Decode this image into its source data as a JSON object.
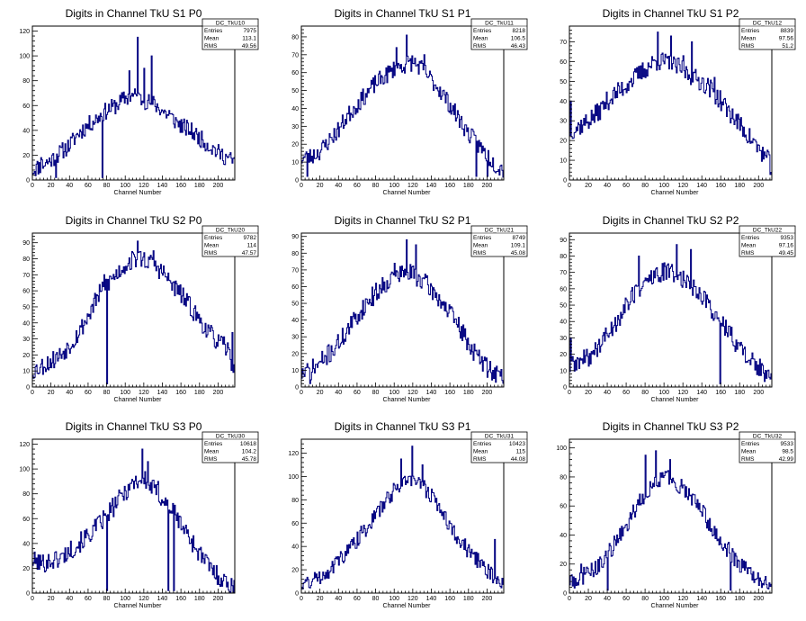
{
  "chart_data": [
    {
      "type": "histogram",
      "id": "DC_TkU10",
      "title": "Digits in Channel TkU S1 P0",
      "xlabel": "Channel Number",
      "xlim": [
        0,
        218
      ],
      "ylim": [
        0,
        124
      ],
      "xticks": [
        0,
        20,
        40,
        60,
        80,
        100,
        120,
        140,
        160,
        180,
        200
      ],
      "yticks": [
        0,
        20,
        40,
        60,
        80,
        100,
        120
      ],
      "stats": {
        "name": "DC_TkU10",
        "entries": "7975",
        "mean": "113.1",
        "rms": "49.56"
      },
      "anchors": [
        [
          0,
          8
        ],
        [
          10,
          12
        ],
        [
          20,
          16
        ],
        [
          30,
          22
        ],
        [
          40,
          28
        ],
        [
          50,
          38
        ],
        [
          60,
          44
        ],
        [
          70,
          50
        ],
        [
          80,
          56
        ],
        [
          90,
          60
        ],
        [
          100,
          66
        ],
        [
          110,
          68
        ],
        [
          120,
          64
        ],
        [
          130,
          62
        ],
        [
          140,
          56
        ],
        [
          150,
          50
        ],
        [
          160,
          44
        ],
        [
          170,
          40
        ],
        [
          180,
          34
        ],
        [
          190,
          28
        ],
        [
          200,
          22
        ],
        [
          210,
          18
        ],
        [
          218,
          14
        ]
      ],
      "spikes": [
        [
          113,
          115
        ],
        [
          128,
          100
        ],
        [
          104,
          88
        ],
        [
          120,
          90
        ],
        [
          147,
          56
        ],
        [
          164,
          40
        ],
        [
          9,
          18
        ],
        [
          196,
          26
        ],
        [
          25,
          2
        ],
        [
          75,
          2
        ]
      ],
      "noise": 7,
      "seed": 11
    },
    {
      "type": "histogram",
      "id": "DC_TkU11",
      "title": "Digits in Channel TkU S1 P1",
      "xlabel": "Channel Number",
      "xlim": [
        0,
        218
      ],
      "ylim": [
        0,
        86
      ],
      "xticks": [
        0,
        20,
        40,
        60,
        80,
        100,
        120,
        140,
        160,
        180,
        200
      ],
      "yticks": [
        0,
        10,
        20,
        30,
        40,
        50,
        60,
        70,
        80
      ],
      "stats": {
        "name": "DC_TkU11",
        "entries": "8218",
        "mean": "106.5",
        "rms": "46.43"
      },
      "anchors": [
        [
          0,
          12
        ],
        [
          10,
          13
        ],
        [
          20,
          16
        ],
        [
          30,
          22
        ],
        [
          40,
          28
        ],
        [
          50,
          36
        ],
        [
          60,
          42
        ],
        [
          70,
          48
        ],
        [
          80,
          54
        ],
        [
          90,
          58
        ],
        [
          100,
          62
        ],
        [
          110,
          64
        ],
        [
          120,
          66
        ],
        [
          130,
          62
        ],
        [
          140,
          56
        ],
        [
          150,
          50
        ],
        [
          160,
          42
        ],
        [
          170,
          34
        ],
        [
          180,
          26
        ],
        [
          190,
          20
        ],
        [
          200,
          14
        ],
        [
          210,
          8
        ],
        [
          218,
          6
        ]
      ],
      "spikes": [
        [
          113,
          81
        ],
        [
          102,
          74
        ],
        [
          132,
          70
        ],
        [
          188,
          2
        ],
        [
          200,
          2
        ],
        [
          6,
          2
        ]
      ],
      "noise": 5,
      "seed": 23
    },
    {
      "type": "histogram",
      "id": "DC_TkU12",
      "title": "Digits in Channel TkU S1 P2",
      "xlabel": "Channel Number",
      "xlim": [
        0,
        214
      ],
      "ylim": [
        0,
        78
      ],
      "xticks": [
        0,
        20,
        40,
        60,
        80,
        100,
        120,
        140,
        160,
        180,
        200
      ],
      "yticks": [
        0,
        10,
        20,
        30,
        40,
        50,
        60,
        70
      ],
      "stats": {
        "name": "DC_TkU12",
        "entries": "8839",
        "mean": "97.56",
        "rms": "51.2"
      },
      "anchors": [
        [
          0,
          25
        ],
        [
          10,
          27
        ],
        [
          20,
          30
        ],
        [
          30,
          34
        ],
        [
          40,
          40
        ],
        [
          50,
          44
        ],
        [
          60,
          48
        ],
        [
          70,
          52
        ],
        [
          80,
          56
        ],
        [
          90,
          60
        ],
        [
          100,
          60
        ],
        [
          110,
          58
        ],
        [
          120,
          56
        ],
        [
          130,
          52
        ],
        [
          140,
          50
        ],
        [
          150,
          46
        ],
        [
          160,
          40
        ],
        [
          170,
          34
        ],
        [
          180,
          28
        ],
        [
          190,
          22
        ],
        [
          200,
          16
        ],
        [
          210,
          10
        ],
        [
          214,
          6
        ]
      ],
      "spikes": [
        [
          1,
          40
        ],
        [
          93,
          75
        ],
        [
          107,
          73
        ],
        [
          129,
          70
        ],
        [
          120,
          63
        ],
        [
          153,
          52
        ],
        [
          63,
          50
        ]
      ],
      "noise": 5,
      "seed": 37
    },
    {
      "type": "histogram",
      "id": "DC_TkU20",
      "title": "Digits in Channel TkU S2 P0",
      "xlabel": "Channel Number",
      "xlim": [
        0,
        218
      ],
      "ylim": [
        0,
        96
      ],
      "xticks": [
        0,
        20,
        40,
        60,
        80,
        100,
        120,
        140,
        160,
        180,
        200
      ],
      "yticks": [
        0,
        10,
        20,
        30,
        40,
        50,
        60,
        70,
        80,
        90
      ],
      "stats": {
        "name": "DC_TkU20",
        "entries": "9782",
        "mean": "114",
        "rms": "47.57"
      },
      "anchors": [
        [
          0,
          10
        ],
        [
          10,
          13
        ],
        [
          20,
          16
        ],
        [
          30,
          20
        ],
        [
          40,
          26
        ],
        [
          50,
          34
        ],
        [
          60,
          44
        ],
        [
          70,
          56
        ],
        [
          80,
          64
        ],
        [
          90,
          70
        ],
        [
          100,
          76
        ],
        [
          110,
          80
        ],
        [
          120,
          80
        ],
        [
          130,
          76
        ],
        [
          140,
          72
        ],
        [
          150,
          64
        ],
        [
          160,
          58
        ],
        [
          170,
          50
        ],
        [
          180,
          42
        ],
        [
          190,
          34
        ],
        [
          200,
          28
        ],
        [
          210,
          24
        ],
        [
          218,
          10
        ]
      ],
      "spikes": [
        [
          113,
          91
        ],
        [
          80,
          2
        ],
        [
          130,
          85
        ],
        [
          215,
          34
        ],
        [
          77,
          70
        ]
      ],
      "noise": 6,
      "seed": 53
    },
    {
      "type": "histogram",
      "id": "DC_TkU21",
      "title": "Digits in Channel TkU S2 P1",
      "xlabel": "Channel Number",
      "xlim": [
        0,
        218
      ],
      "ylim": [
        0,
        92
      ],
      "xticks": [
        0,
        20,
        40,
        60,
        80,
        100,
        120,
        140,
        160,
        180,
        200
      ],
      "yticks": [
        0,
        10,
        20,
        30,
        40,
        50,
        60,
        70,
        80,
        90
      ],
      "stats": {
        "name": "DC_TkU21",
        "entries": "8749",
        "mean": "109.1",
        "rms": "45.08"
      },
      "anchors": [
        [
          0,
          8
        ],
        [
          10,
          10
        ],
        [
          20,
          14
        ],
        [
          30,
          20
        ],
        [
          40,
          26
        ],
        [
          50,
          34
        ],
        [
          60,
          42
        ],
        [
          70,
          50
        ],
        [
          80,
          56
        ],
        [
          90,
          62
        ],
        [
          100,
          66
        ],
        [
          110,
          68
        ],
        [
          120,
          68
        ],
        [
          130,
          64
        ],
        [
          140,
          58
        ],
        [
          150,
          52
        ],
        [
          160,
          44
        ],
        [
          170,
          36
        ],
        [
          180,
          26
        ],
        [
          190,
          18
        ],
        [
          200,
          12
        ],
        [
          210,
          8
        ],
        [
          218,
          6
        ]
      ],
      "spikes": [
        [
          113,
          88
        ],
        [
          123,
          85
        ],
        [
          100,
          74
        ],
        [
          9,
          2
        ],
        [
          6,
          14
        ]
      ],
      "noise": 6,
      "seed": 71
    },
    {
      "type": "histogram",
      "id": "DC_TkU22",
      "title": "Digits in Channel TkU S2 P2",
      "xlabel": "Channel Number",
      "xlim": [
        0,
        214
      ],
      "ylim": [
        0,
        94
      ],
      "xticks": [
        0,
        20,
        40,
        60,
        80,
        100,
        120,
        140,
        160,
        180,
        200
      ],
      "yticks": [
        0,
        10,
        20,
        30,
        40,
        50,
        60,
        70,
        80,
        90
      ],
      "stats": {
        "name": "DC_TkU22",
        "entries": "9353",
        "mean": "97.16",
        "rms": "49.45"
      },
      "anchors": [
        [
          0,
          12
        ],
        [
          10,
          15
        ],
        [
          20,
          18
        ],
        [
          30,
          24
        ],
        [
          40,
          32
        ],
        [
          50,
          40
        ],
        [
          60,
          50
        ],
        [
          70,
          58
        ],
        [
          80,
          64
        ],
        [
          90,
          68
        ],
        [
          100,
          70
        ],
        [
          110,
          70
        ],
        [
          120,
          66
        ],
        [
          130,
          62
        ],
        [
          140,
          56
        ],
        [
          150,
          48
        ],
        [
          160,
          40
        ],
        [
          170,
          32
        ],
        [
          180,
          24
        ],
        [
          190,
          18
        ],
        [
          200,
          12
        ],
        [
          210,
          6
        ],
        [
          214,
          3
        ]
      ],
      "spikes": [
        [
          113,
          87
        ],
        [
          128,
          84
        ],
        [
          159,
          2
        ],
        [
          1,
          30
        ],
        [
          73,
          80
        ]
      ],
      "noise": 6,
      "seed": 89
    },
    {
      "type": "histogram",
      "id": "DC_TkU30",
      "title": "Digits in Channel TkU S3 P0",
      "xlabel": "Channel Number",
      "xlim": [
        0,
        218
      ],
      "ylim": [
        0,
        124
      ],
      "xticks": [
        0,
        20,
        40,
        60,
        80,
        100,
        120,
        140,
        160,
        180,
        200
      ],
      "yticks": [
        0,
        20,
        40,
        60,
        80,
        100,
        120
      ],
      "stats": {
        "name": "DC_TkU30",
        "entries": "10618",
        "mean": "104.2",
        "rms": "45.78"
      },
      "anchors": [
        [
          0,
          26
        ],
        [
          10,
          24
        ],
        [
          20,
          26
        ],
        [
          30,
          28
        ],
        [
          40,
          34
        ],
        [
          50,
          40
        ],
        [
          60,
          46
        ],
        [
          70,
          54
        ],
        [
          80,
          62
        ],
        [
          90,
          72
        ],
        [
          100,
          82
        ],
        [
          110,
          90
        ],
        [
          120,
          92
        ],
        [
          130,
          84
        ],
        [
          140,
          76
        ],
        [
          150,
          68
        ],
        [
          160,
          56
        ],
        [
          170,
          44
        ],
        [
          180,
          32
        ],
        [
          190,
          22
        ],
        [
          200,
          14
        ],
        [
          210,
          8
        ],
        [
          218,
          4
        ]
      ],
      "spikes": [
        [
          118,
          116
        ],
        [
          80,
          2
        ],
        [
          146,
          2
        ],
        [
          152,
          2
        ],
        [
          124,
          106
        ],
        [
          135,
          90
        ]
      ],
      "noise": 8,
      "seed": 101
    },
    {
      "type": "histogram",
      "id": "DC_TkU31",
      "title": "Digits in Channel TkU S3 P1",
      "xlabel": "Channel Number",
      "xlim": [
        0,
        218
      ],
      "ylim": [
        0,
        132
      ],
      "xticks": [
        0,
        20,
        40,
        60,
        80,
        100,
        120,
        140,
        160,
        180,
        200
      ],
      "yticks": [
        0,
        20,
        40,
        60,
        80,
        100,
        120
      ],
      "stats": {
        "name": "DC_TkU31",
        "entries": "10423",
        "mean": "115",
        "rms": "44.08"
      },
      "anchors": [
        [
          0,
          8
        ],
        [
          10,
          10
        ],
        [
          20,
          14
        ],
        [
          30,
          20
        ],
        [
          40,
          28
        ],
        [
          50,
          36
        ],
        [
          60,
          46
        ],
        [
          70,
          56
        ],
        [
          80,
          66
        ],
        [
          90,
          78
        ],
        [
          100,
          88
        ],
        [
          110,
          96
        ],
        [
          120,
          98
        ],
        [
          130,
          92
        ],
        [
          140,
          84
        ],
        [
          150,
          72
        ],
        [
          160,
          58
        ],
        [
          170,
          46
        ],
        [
          180,
          36
        ],
        [
          190,
          28
        ],
        [
          200,
          20
        ],
        [
          210,
          12
        ],
        [
          218,
          6
        ]
      ],
      "spikes": [
        [
          119,
          126
        ],
        [
          107,
          115
        ],
        [
          130,
          110
        ],
        [
          208,
          46
        ]
      ],
      "noise": 7,
      "seed": 131
    },
    {
      "type": "histogram",
      "id": "DC_TkU32",
      "title": "Digits in Channel TkU S3 P2",
      "xlabel": "Channel Number",
      "xlim": [
        0,
        214
      ],
      "ylim": [
        0,
        106
      ],
      "xticks": [
        0,
        20,
        40,
        60,
        80,
        100,
        120,
        140,
        160,
        180,
        200
      ],
      "yticks": [
        0,
        20,
        40,
        60,
        80,
        100
      ],
      "stats": {
        "name": "DC_TkU32",
        "entries": "9533",
        "mean": "98.5",
        "rms": "42.99"
      },
      "anchors": [
        [
          0,
          8
        ],
        [
          10,
          10
        ],
        [
          20,
          14
        ],
        [
          30,
          18
        ],
        [
          40,
          26
        ],
        [
          50,
          36
        ],
        [
          60,
          46
        ],
        [
          70,
          58
        ],
        [
          80,
          68
        ],
        [
          90,
          76
        ],
        [
          100,
          80
        ],
        [
          110,
          78
        ],
        [
          120,
          72
        ],
        [
          130,
          66
        ],
        [
          140,
          56
        ],
        [
          150,
          46
        ],
        [
          160,
          36
        ],
        [
          170,
          28
        ],
        [
          180,
          20
        ],
        [
          190,
          14
        ],
        [
          200,
          10
        ],
        [
          210,
          6
        ],
        [
          214,
          4
        ]
      ],
      "spikes": [
        [
          91,
          98
        ],
        [
          80,
          95
        ],
        [
          106,
          92
        ],
        [
          40,
          2
        ],
        [
          170,
          2
        ],
        [
          12,
          20
        ]
      ],
      "noise": 6,
      "seed": 149
    }
  ],
  "stats_labels": {
    "entries": "Entries",
    "mean": "Mean",
    "rms": "RMS"
  }
}
